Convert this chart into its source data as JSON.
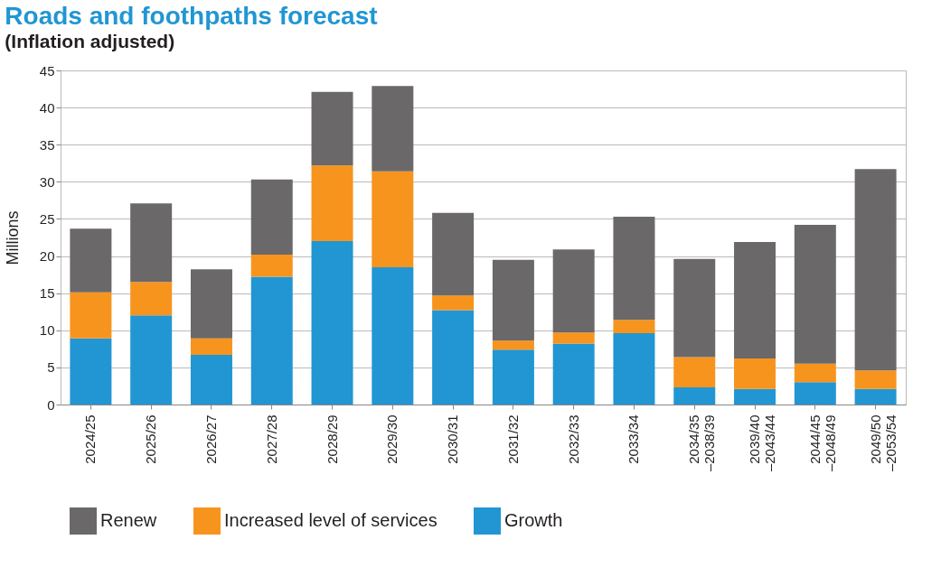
{
  "chart_data": {
    "type": "bar",
    "title": "Roads and foothpaths forecast",
    "subtitle": "(Inflation adjusted)",
    "ylabel": "Millions",
    "categories": [
      "2024/25",
      "2025/26",
      "2026/27",
      "2027/28",
      "2028/29",
      "2029/30",
      "2030/31",
      "2031/32",
      "2032/33",
      "2033/34",
      "2034/35 –2038/39",
      "2039/40 –2043/44",
      "2044/45 –2048/49",
      "2049/50 –2053/54"
    ],
    "stacked": true,
    "series": [
      {
        "name": "Growth",
        "color": "#2196d3",
        "values": [
          8.9,
          12.0,
          6.7,
          17.2,
          22.0,
          18.5,
          12.7,
          7.4,
          8.2,
          9.6,
          2.3,
          2.1,
          3.0,
          2.1
        ]
      },
      {
        "name": "Increased level of services",
        "color": "#f7941d",
        "values": [
          6.2,
          4.5,
          2.2,
          3.0,
          10.2,
          12.9,
          2.0,
          1.2,
          1.5,
          1.8,
          4.1,
          4.1,
          2.5,
          2.5
        ]
      },
      {
        "name": "Renew",
        "color": "#6b6869",
        "values": [
          8.6,
          10.6,
          9.3,
          10.1,
          9.9,
          11.5,
          11.1,
          10.9,
          11.2,
          13.9,
          13.2,
          15.7,
          18.7,
          27.1
        ]
      }
    ],
    "ylim": [
      0,
      45
    ],
    "yticks": [
      0,
      5,
      10,
      15,
      20,
      25,
      30,
      35,
      40,
      45
    ],
    "grid": "y",
    "legend": "bottom"
  }
}
